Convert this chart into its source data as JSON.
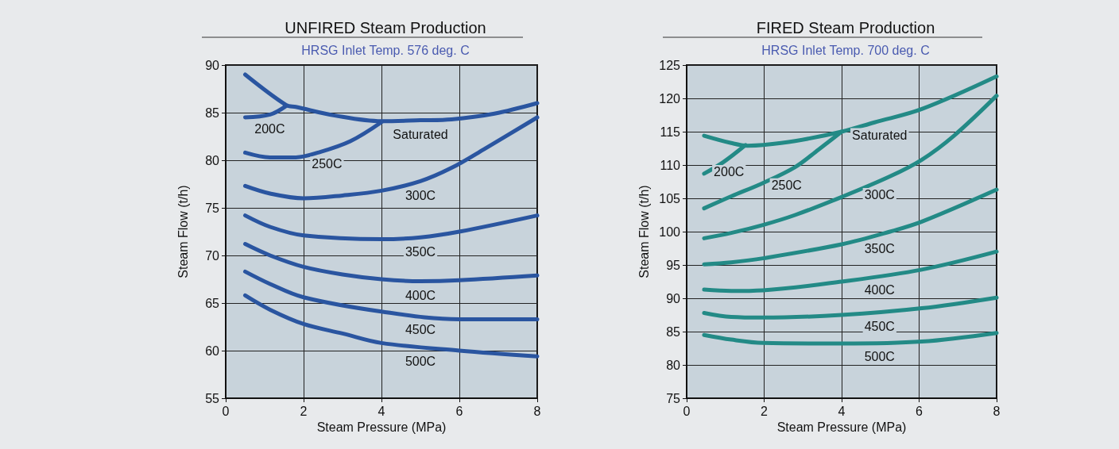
{
  "chart_data": [
    {
      "type": "line",
      "title": "UNFIRED Steam Production",
      "subtitle": "HRSG Inlet Temp. 576 deg. C",
      "xlabel": "Steam Pressure (MPa)",
      "ylabel": "Steam Flow (t/h)",
      "xlim": [
        0,
        8
      ],
      "ylim": [
        55,
        90
      ],
      "xticks": [
        0,
        2,
        4,
        6,
        8
      ],
      "yticks": [
        55,
        60,
        65,
        70,
        75,
        80,
        85,
        90
      ],
      "grid": true,
      "marker": "none",
      "line_style": "solid",
      "series": [
        {
          "name": "Saturated",
          "color": "#2a55a0",
          "x": [
            0.5,
            1.55,
            1.8,
            2.8,
            4,
            5,
            5.8,
            6.9,
            8
          ],
          "values": [
            89,
            85.8,
            85.6,
            84.7,
            84.1,
            84.2,
            84.3,
            84.9,
            86
          ]
        },
        {
          "name": "200C",
          "color": "#2a55a0",
          "x": [
            0.5,
            1.14,
            1.55
          ],
          "values": [
            84.5,
            84.8,
            85.7
          ]
        },
        {
          "name": "250C",
          "color": "#2a55a0",
          "x": [
            0.5,
            1.14,
            1.8,
            2.37,
            3.2,
            4
          ],
          "values": [
            80.8,
            80.3,
            80.3,
            80.8,
            82,
            84
          ]
        },
        {
          "name": "300C",
          "color": "#2a55a0",
          "x": [
            0.5,
            1.14,
            2,
            3,
            4,
            5,
            5.8,
            6.65,
            8
          ],
          "values": [
            77.3,
            76.5,
            76,
            76.3,
            76.8,
            77.8,
            79.2,
            81.2,
            84.5
          ]
        },
        {
          "name": "350C",
          "color": "#2a55a0",
          "x": [
            0.5,
            1.14,
            2,
            4,
            5,
            6,
            8
          ],
          "values": [
            74.2,
            73,
            72.1,
            71.7,
            71.9,
            72.5,
            74.2
          ]
        },
        {
          "name": "400C",
          "color": "#2a55a0",
          "x": [
            0.5,
            1.14,
            2,
            3,
            4,
            5,
            6,
            8
          ],
          "values": [
            71.2,
            70,
            68.8,
            68,
            67.5,
            67.3,
            67.4,
            67.9
          ]
        },
        {
          "name": "450C",
          "color": "#2a55a0",
          "x": [
            0.5,
            1.14,
            2,
            4,
            6,
            8
          ],
          "values": [
            68.3,
            67,
            65.6,
            64.1,
            63.3,
            63.3
          ]
        },
        {
          "name": "500C",
          "color": "#2a55a0",
          "x": [
            0.5,
            1.14,
            2,
            3,
            4,
            6,
            8
          ],
          "values": [
            65.8,
            64.3,
            62.8,
            61.8,
            60.8,
            60,
            59.4
          ]
        }
      ]
    },
    {
      "type": "line",
      "title": "FIRED Steam Production",
      "subtitle": "HRSG Inlet Temp. 700 deg. C",
      "xlabel": "Steam Pressure (MPa)",
      "ylabel": "Steam Flow (t/h)",
      "xlim": [
        0,
        8
      ],
      "ylim": [
        75,
        125
      ],
      "xticks": [
        0,
        2,
        4,
        6,
        8
      ],
      "yticks": [
        75,
        80,
        85,
        90,
        95,
        100,
        105,
        110,
        115,
        120,
        125
      ],
      "grid": true,
      "marker": "none",
      "line_style": "solid",
      "series": [
        {
          "name": "Saturated",
          "color": "#238a86",
          "x": [
            0.45,
            1.15,
            1.56,
            1.97,
            2.8,
            4,
            4.85,
            6.07,
            8
          ],
          "values": [
            114.4,
            113.3,
            112.9,
            113,
            113.6,
            115,
            116.4,
            118.4,
            123.3
          ]
        },
        {
          "name": "200C",
          "color": "#238a86",
          "x": [
            0.45,
            0.94,
            1.52
          ],
          "values": [
            108.7,
            110.4,
            113
          ]
        },
        {
          "name": "250C",
          "color": "#238a86",
          "x": [
            0.45,
            1.15,
            1.97,
            2.8,
            3.4,
            4
          ],
          "values": [
            103.5,
            105.3,
            107.3,
            109.7,
            112.3,
            115
          ]
        },
        {
          "name": "300C",
          "color": "#238a86",
          "x": [
            0.45,
            1.15,
            1.97,
            2.8,
            4,
            5.25,
            6.07,
            6.9,
            8
          ],
          "values": [
            99,
            99.8,
            101,
            102.5,
            105.2,
            108.3,
            110.8,
            114.4,
            120.4
          ]
        },
        {
          "name": "350C",
          "color": "#238a86",
          "x": [
            0.45,
            1.15,
            1.97,
            4,
            5.25,
            6.07,
            8
          ],
          "values": [
            95.1,
            95.4,
            96,
            98.1,
            100,
            101.5,
            106.3
          ]
        },
        {
          "name": "400C",
          "color": "#238a86",
          "x": [
            0.45,
            1.15,
            1.97,
            4,
            6.07,
            8
          ],
          "values": [
            91.3,
            91.1,
            91.2,
            92.5,
            94.3,
            97
          ]
        },
        {
          "name": "450C",
          "color": "#238a86",
          "x": [
            0.45,
            1.15,
            1.97,
            4,
            6.07,
            8
          ],
          "values": [
            87.8,
            87.2,
            87.1,
            87.5,
            88.5,
            90.1
          ]
        },
        {
          "name": "500C",
          "color": "#238a86",
          "x": [
            0.45,
            1.15,
            1.97,
            4,
            6.07,
            8
          ],
          "values": [
            84.5,
            83.8,
            83.3,
            83.2,
            83.5,
            84.8
          ]
        }
      ]
    }
  ]
}
